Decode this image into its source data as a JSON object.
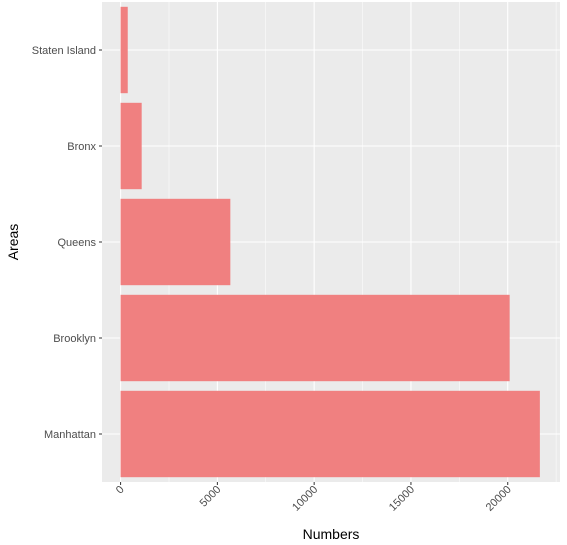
{
  "chart_data": {
    "type": "bar",
    "orientation": "horizontal",
    "categories": [
      "Manhattan",
      "Brooklyn",
      "Queens",
      "Bronx",
      "Staten Island"
    ],
    "values": [
      21660,
      20100,
      5670,
      1090,
      370
    ],
    "xlabel": "Numbers",
    "ylabel": "Areas",
    "xlim": [
      -960,
      22700
    ],
    "x_ticks": [
      0,
      5000,
      10000,
      15000,
      20000
    ],
    "x_tick_labels": [
      "0",
      "5000",
      "10000",
      "15000",
      "20000"
    ],
    "x_tick_label_rotation": "45deg",
    "grid": true,
    "legend": "none",
    "colors": {
      "bar": "#f08080",
      "panel_background": "#ebebeb",
      "grid_major": "#ffffff",
      "tick_color": "#333333"
    }
  }
}
